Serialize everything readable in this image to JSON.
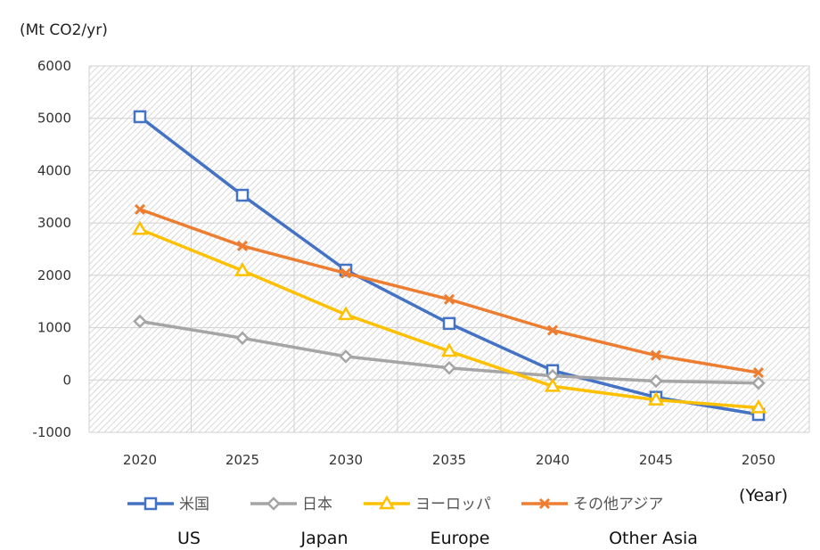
{
  "chart_data": {
    "type": "line",
    "title": "",
    "ylabel": "(Mt CO2/yr)",
    "xlabel": "(Year)",
    "x": [
      2020,
      2025,
      2030,
      2035,
      2040,
      2045,
      2050
    ],
    "x_tick_labels": [
      "2020",
      "2025",
      "2030",
      "2035",
      "2040",
      "2045",
      "2050"
    ],
    "ylim": [
      -1000,
      6000
    ],
    "y_ticks": [
      -1000,
      0,
      1000,
      2000,
      3000,
      4000,
      5000,
      6000
    ],
    "y_tick_labels": [
      "-1000",
      "0",
      "1000",
      "2000",
      "3000",
      "4000",
      "5000",
      "6000"
    ],
    "grid": true,
    "legend_position": "bottom",
    "series": [
      {
        "name": "米国",
        "name_en": "US",
        "color": "#4472C4",
        "marker": "square",
        "values": [
          5030,
          3530,
          2100,
          1080,
          180,
          -330,
          -660
        ]
      },
      {
        "name": "日本",
        "name_en": "Japan",
        "color": "#A5A5A5",
        "marker": "diamond",
        "values": [
          1120,
          800,
          450,
          230,
          80,
          -20,
          -60
        ]
      },
      {
        "name": "ヨーロッパ",
        "name_en": "Europe",
        "color": "#FFC000",
        "marker": "triangle",
        "values": [
          2880,
          2090,
          1250,
          550,
          -120,
          -380,
          -530
        ]
      },
      {
        "name": "その他アジア",
        "name_en": "Other Asia",
        "color": "#ED7D31",
        "marker": "x",
        "values": [
          3260,
          2560,
          2040,
          1540,
          950,
          470,
          140
        ]
      }
    ]
  }
}
